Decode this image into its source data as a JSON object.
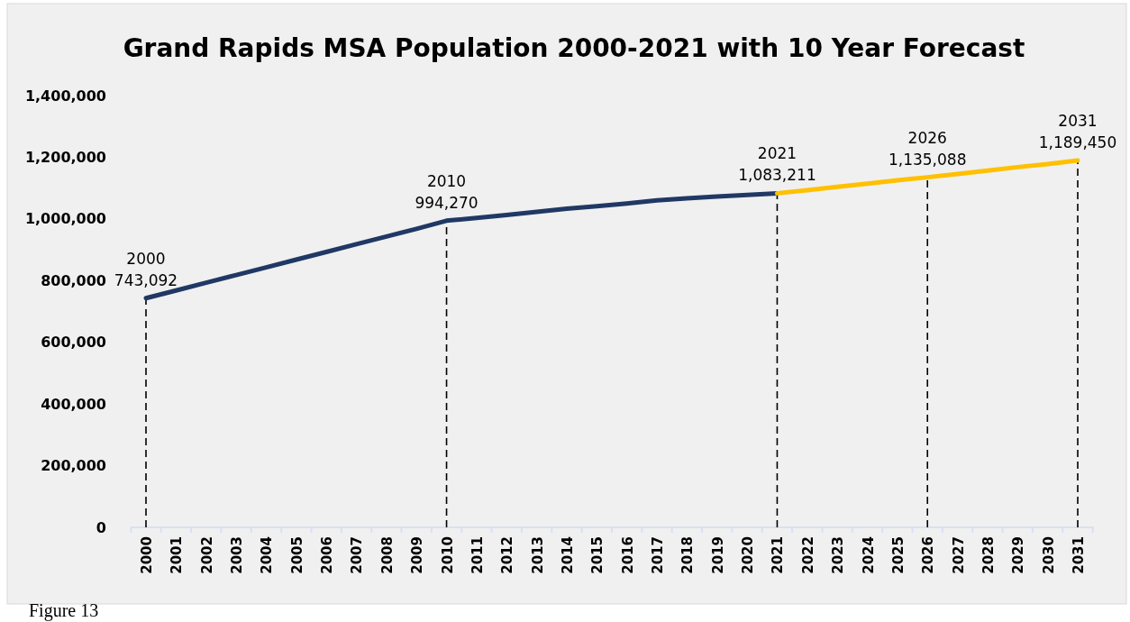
{
  "chart_data": {
    "type": "line",
    "title": "Grand Rapids MSA Population 2000-2021 with 10 Year Forecast",
    "categories": [
      "2000",
      "2001",
      "2002",
      "2003",
      "2004",
      "2005",
      "2006",
      "2007",
      "2008",
      "2009",
      "2010",
      "2011",
      "2012",
      "2013",
      "2014",
      "2015",
      "2016",
      "2017",
      "2018",
      "2019",
      "2020",
      "2021",
      "2022",
      "2023",
      "2024",
      "2025",
      "2026",
      "2027",
      "2028",
      "2029",
      "2030",
      "2031"
    ],
    "series": [
      {
        "color": "#203864",
        "values": [
          743092,
          768000,
          793000,
          818000,
          843000,
          868000,
          893000,
          918000,
          943000,
          968000,
          994270,
          1003000,
          1013000,
          1023000,
          1033000,
          1041000,
          1050000,
          1060000,
          1067000,
          1073000,
          1078000,
          1083211,
          null,
          null,
          null,
          null,
          null,
          null,
          null,
          null,
          null,
          null
        ],
        "value_labels": [
          "2000\n743,092",
          null,
          null,
          null,
          null,
          null,
          null,
          null,
          null,
          null,
          "2010\n994,270",
          null,
          null,
          null,
          null,
          null,
          null,
          null,
          null,
          null,
          null,
          "2021\n1,083,211",
          null,
          null,
          null,
          null,
          null,
          null,
          null,
          null,
          null,
          null
        ]
      },
      {
        "color": "#ffc000",
        "values": [
          null,
          null,
          null,
          null,
          null,
          null,
          null,
          null,
          null,
          null,
          null,
          null,
          null,
          null,
          null,
          null,
          null,
          null,
          null,
          null,
          null,
          1083211,
          1093000,
          1104000,
          1114000,
          1125000,
          1135088,
          1146000,
          1157000,
          1168000,
          1178000,
          1189450
        ],
        "value_labels": [
          null,
          null,
          null,
          null,
          null,
          null,
          null,
          null,
          null,
          null,
          null,
          null,
          null,
          null,
          null,
          null,
          null,
          null,
          null,
          null,
          null,
          null,
          null,
          null,
          null,
          null,
          "2026\n1,135,088",
          null,
          null,
          null,
          null,
          "2031\n1,189,450"
        ]
      }
    ],
    "ylim": [
      0,
      1400000
    ],
    "yticks": [
      {
        "value": 0,
        "label": "0"
      },
      {
        "value": 200000,
        "label": "200,000"
      },
      {
        "value": 400000,
        "label": "400,000"
      },
      {
        "value": 600000,
        "label": "600,000"
      },
      {
        "value": 800000,
        "label": "800,000"
      },
      {
        "value": 1000000,
        "label": "1,000,000"
      },
      {
        "value": 1200000,
        "label": "1,200,000"
      },
      {
        "value": 1400000,
        "label": "1,400,000"
      }
    ],
    "ref_lines": [
      {
        "axis": "x",
        "value": "2000",
        "line_style": "dashed",
        "color": "#000000"
      },
      {
        "axis": "x",
        "value": "2010",
        "line_style": "dashed",
        "color": "#000000"
      },
      {
        "axis": "x",
        "value": "2021",
        "line_style": "dashed",
        "color": "#000000"
      },
      {
        "axis": "x",
        "value": "2026",
        "line_style": "dashed",
        "color": "#000000"
      },
      {
        "axis": "x",
        "value": "2031",
        "line_style": "dashed",
        "color": "#000000"
      }
    ],
    "grid": false,
    "line_style": "solid",
    "marker": "none",
    "annotations": [
      "Figure 13"
    ]
  }
}
